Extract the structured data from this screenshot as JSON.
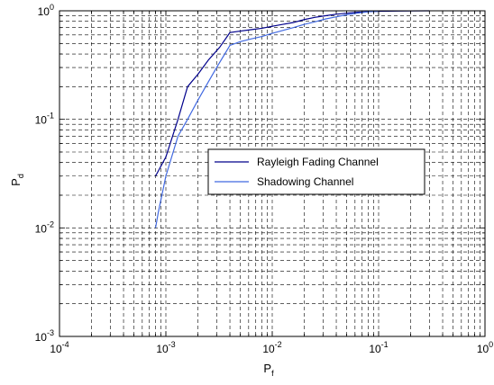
{
  "chart_data": {
    "type": "line",
    "xscale": "log",
    "yscale": "log",
    "xlim": [
      0.0001,
      1
    ],
    "ylim": [
      0.001,
      1
    ],
    "grid": true,
    "x_ticks": [
      {
        "base": "10",
        "exp": "-4"
      },
      {
        "base": "10",
        "exp": "-3"
      },
      {
        "base": "10",
        "exp": "-2"
      },
      {
        "base": "10",
        "exp": "-1"
      },
      {
        "base": "10",
        "exp": "0"
      }
    ],
    "y_ticks": [
      {
        "base": "10",
        "exp": "-3"
      },
      {
        "base": "10",
        "exp": "-2"
      },
      {
        "base": "10",
        "exp": "-1"
      },
      {
        "base": "10",
        "exp": "0"
      }
    ],
    "xlabel": {
      "main": "P",
      "sub": "f"
    },
    "ylabel": {
      "main": "P",
      "sub": "d"
    },
    "legend_position": "center-right",
    "series": [
      {
        "name": "Rayleigh Fading Channel",
        "color": "#00008B",
        "x": [
          0.0008,
          0.001,
          0.0013,
          0.0016,
          0.002,
          0.0025,
          0.0032,
          0.004,
          0.005,
          0.0063,
          0.008,
          0.01,
          0.0126,
          0.0158,
          0.02,
          0.0251,
          0.0316,
          0.04,
          0.05,
          0.063,
          0.08,
          0.1,
          0.15,
          0.2,
          0.3
        ],
        "y": [
          0.03,
          0.045,
          0.1,
          0.2,
          0.26,
          0.35,
          0.46,
          0.63,
          0.65,
          0.67,
          0.69,
          0.72,
          0.75,
          0.78,
          0.83,
          0.87,
          0.9,
          0.93,
          0.95,
          0.97,
          0.98,
          0.99,
          0.995,
          0.998,
          1.0
        ]
      },
      {
        "name": "Shadowing Channel",
        "color": "#4169E1",
        "x": [
          0.0008,
          0.00085,
          0.001,
          0.0013,
          0.0016,
          0.002,
          0.0025,
          0.003,
          0.004,
          0.005,
          0.0063,
          0.008,
          0.01,
          0.0126,
          0.0158,
          0.02,
          0.0251,
          0.0316,
          0.04,
          0.05,
          0.063,
          0.08,
          0.1
        ],
        "y": [
          0.01,
          0.014,
          0.03,
          0.07,
          0.1,
          0.15,
          0.22,
          0.3,
          0.48,
          0.52,
          0.55,
          0.58,
          0.62,
          0.66,
          0.7,
          0.75,
          0.79,
          0.84,
          0.88,
          0.92,
          0.95,
          0.98,
          0.99
        ]
      }
    ]
  }
}
